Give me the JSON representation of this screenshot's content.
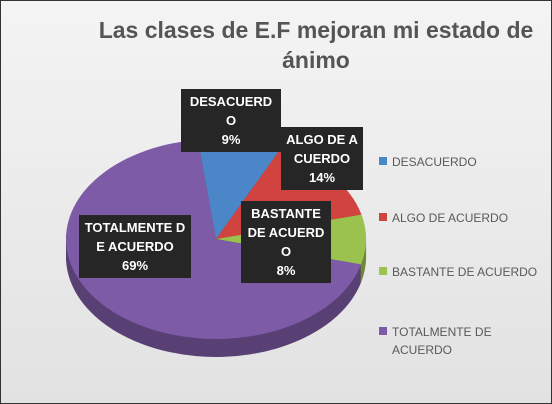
{
  "chart_data": {
    "type": "pie",
    "title": "Las clases de E.F mejoran mi estado de ánimo",
    "categories": [
      "DESACUERDO",
      "ALGO DE ACUERDO",
      "BASTANTE DE ACUERDO",
      "TOTALMENTE DE ACUERDO"
    ],
    "values": [
      9,
      14,
      8,
      69
    ],
    "value_labels": [
      "9%",
      "14%",
      "8%",
      "69%"
    ],
    "colors": [
      "#4a86c8",
      "#d0433f",
      "#9bc24f",
      "#7e5ba6"
    ],
    "legend": "right"
  }
}
